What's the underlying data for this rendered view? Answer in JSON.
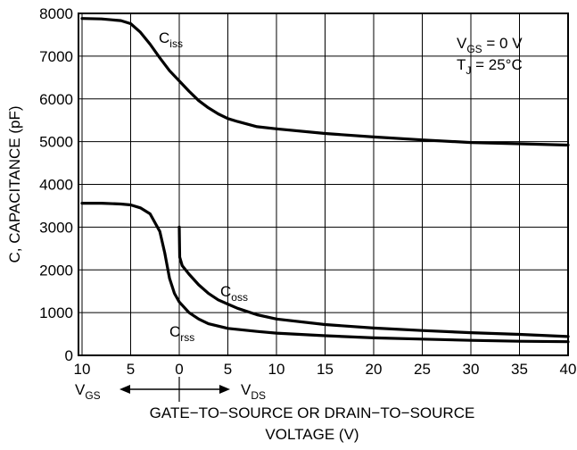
{
  "chart_data": {
    "type": "line",
    "ylabel": "C, CAPACITANCE (pF)",
    "xlabel_line1": "GATE−TO−SOURCE OR DRAIN−TO−SOURCE",
    "xlabel_line2": "VOLTAGE (V)",
    "ylim": [
      0,
      8000
    ],
    "y_ticks": [
      0,
      1000,
      2000,
      3000,
      4000,
      5000,
      6000,
      7000,
      8000
    ],
    "x_ticks_vgs": [
      10,
      5,
      0
    ],
    "x_ticks_vds": [
      5,
      10,
      15,
      20,
      25,
      30,
      35,
      40
    ],
    "x_axis_note": "Left of 0: gate-to-source voltage VGS (increasing leftward); right of 0: drain-to-source voltage VDS",
    "vgs_label": {
      "main": "V",
      "sub": "GS"
    },
    "vds_label": {
      "main": "V",
      "sub": "DS"
    },
    "conditions": [
      {
        "main": "V",
        "sub": "GS",
        "rest": " = 0 V"
      },
      {
        "main": "T",
        "sub": "J",
        "rest": " = 25°C"
      }
    ],
    "grid": true,
    "series": [
      {
        "name": "Ciss",
        "label_main": "C",
        "label_sub": "iss",
        "note": "x < 0 is VGS side (magnitude = -x)",
        "points": [
          [
            -10,
            7880
          ],
          [
            -8,
            7870
          ],
          [
            -6,
            7830
          ],
          [
            -5,
            7760
          ],
          [
            -4,
            7560
          ],
          [
            -3,
            7280
          ],
          [
            -2,
            6960
          ],
          [
            -1,
            6660
          ],
          [
            0,
            6420
          ],
          [
            1,
            6180
          ],
          [
            2,
            5960
          ],
          [
            3,
            5790
          ],
          [
            4,
            5650
          ],
          [
            5,
            5540
          ],
          [
            6,
            5470
          ],
          [
            8,
            5350
          ],
          [
            10,
            5300
          ],
          [
            15,
            5190
          ],
          [
            20,
            5110
          ],
          [
            25,
            5040
          ],
          [
            30,
            4980
          ],
          [
            35,
            4950
          ],
          [
            40,
            4920
          ]
        ]
      },
      {
        "name": "Crss",
        "label_main": "C",
        "label_sub": "rss",
        "points": [
          [
            -10,
            3560
          ],
          [
            -8,
            3560
          ],
          [
            -6,
            3540
          ],
          [
            -5,
            3520
          ],
          [
            -4,
            3450
          ],
          [
            -3,
            3310
          ],
          [
            -2,
            2900
          ],
          [
            -1.5,
            2400
          ],
          [
            -1,
            1800
          ],
          [
            -0.5,
            1450
          ],
          [
            0,
            1250
          ],
          [
            1,
            1000
          ],
          [
            2,
            850
          ],
          [
            3,
            740
          ],
          [
            5,
            630
          ],
          [
            8,
            560
          ],
          [
            10,
            520
          ],
          [
            15,
            460
          ],
          [
            20,
            410
          ],
          [
            25,
            380
          ],
          [
            30,
            350
          ],
          [
            35,
            330
          ],
          [
            40,
            320
          ]
        ]
      },
      {
        "name": "Coss",
        "label_main": "C",
        "label_sub": "oss",
        "points": [
          [
            0,
            3000
          ],
          [
            0.05,
            2300
          ],
          [
            0.3,
            2100
          ],
          [
            1,
            1900
          ],
          [
            2,
            1650
          ],
          [
            3,
            1450
          ],
          [
            4,
            1300
          ],
          [
            5,
            1200
          ],
          [
            6,
            1100
          ],
          [
            8,
            950
          ],
          [
            10,
            850
          ],
          [
            15,
            720
          ],
          [
            20,
            640
          ],
          [
            25,
            580
          ],
          [
            30,
            530
          ],
          [
            35,
            490
          ],
          [
            40,
            440
          ]
        ]
      }
    ]
  }
}
